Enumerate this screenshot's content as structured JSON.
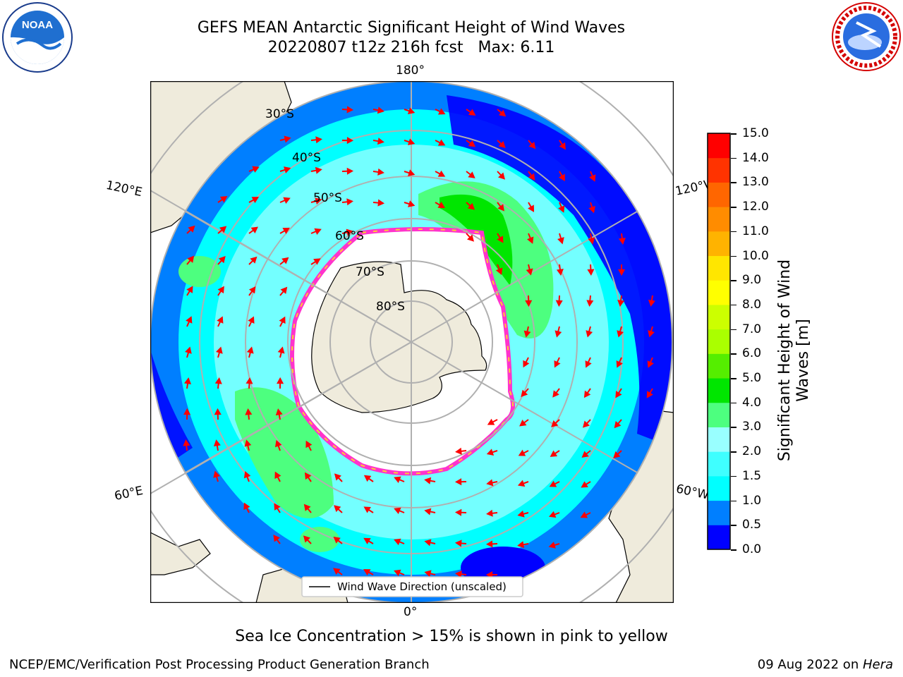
{
  "title": {
    "line1": "GEFS MEAN Antarctic Significant Height of Wind Waves",
    "line2": "20220807 t12z 216h fcst   Max: 6.11"
  },
  "map": {
    "projection": "south-polar-stereographic",
    "longitude_labels": {
      "top": "180°",
      "bottom": "0°",
      "left_upper": "120°E",
      "left_lower": "60°E",
      "right_upper": "120°W",
      "right_lower": "60°W"
    },
    "latitude_labels": [
      "30°S",
      "40°S",
      "50°S",
      "60°S",
      "70°S",
      "80°S"
    ],
    "legend": "Wind Wave Direction (unscaled)",
    "sea_ice_note": "Sea Ice Concentration > 15% is shown in pink to yellow",
    "colors": {
      "land": "#efebdc",
      "ice_edge": "#ff33cc",
      "arrows": "#ff0000",
      "grid": "#b0b0b0"
    }
  },
  "colorbar": {
    "label": "Significant Height of Wind Waves [m]",
    "label_line1": "Significant Height of Wind",
    "label_line2": "Waves [m]",
    "ticks": [
      "0.0",
      "0.5",
      "1.0",
      "1.5",
      "2.0",
      "3.0",
      "4.0",
      "5.0",
      "6.0",
      "7.0",
      "8.0",
      "9.0",
      "10.0",
      "11.0",
      "12.0",
      "13.0",
      "14.0",
      "15.0"
    ],
    "colors": [
      "#0000ff",
      "#007fff",
      "#00ffff",
      "#3fffff",
      "#99ffff",
      "#4dff7f",
      "#00e600",
      "#55ee00",
      "#aaff00",
      "#ccff00",
      "#ffff00",
      "#ffe600",
      "#ffb300",
      "#ff8c00",
      "#ff6600",
      "#ff3300",
      "#ff0000"
    ]
  },
  "footer": {
    "left": "NCEP/EMC/Verification Post Processing Product Generation Branch",
    "right_date": "09 Aug 2022 on ",
    "right_host": "Hera"
  },
  "logos": {
    "left": "NOAA",
    "right": "NATIONAL WEATHER SERVICE"
  }
}
